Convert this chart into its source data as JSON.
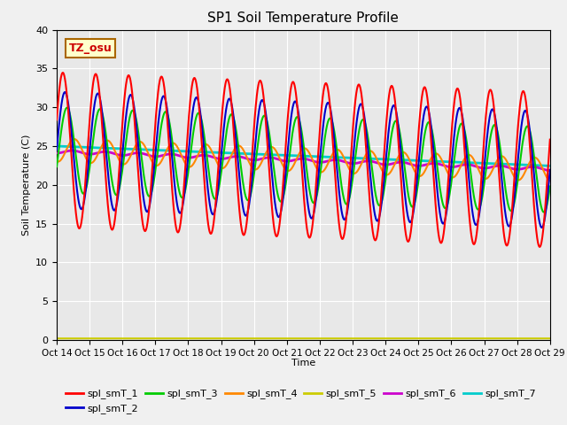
{
  "title": "SP1 Soil Temperature Profile",
  "xlabel": "Time",
  "ylabel": "Soil Temperature (C)",
  "ylim": [
    0,
    40
  ],
  "tz_label": "TZ_osu",
  "series_colors": {
    "spl_smT_1": "#ff0000",
    "spl_smT_2": "#0000cc",
    "spl_smT_3": "#00cc00",
    "spl_smT_4": "#ff8800",
    "spl_smT_5": "#cccc00",
    "spl_smT_6": "#cc00cc",
    "spl_smT_7": "#00cccc"
  },
  "plot_bg": "#e8e8e8",
  "fig_bg": "#f0f0f0",
  "n_points": 2000,
  "n_days": 15,
  "tick_dates": [
    "Oct 14",
    "Oct 15",
    "Oct 16",
    "Oct 17",
    "Oct 18",
    "Oct 19",
    "Oct 20",
    "Oct 21",
    "Oct 22",
    "Oct 23",
    "Oct 24",
    "Oct 25",
    "Oct 26",
    "Oct 27",
    "Oct 28",
    "Oct 29"
  ],
  "tick_positions": [
    0,
    1,
    2,
    3,
    4,
    5,
    6,
    7,
    8,
    9,
    10,
    11,
    12,
    13,
    14,
    15
  ]
}
